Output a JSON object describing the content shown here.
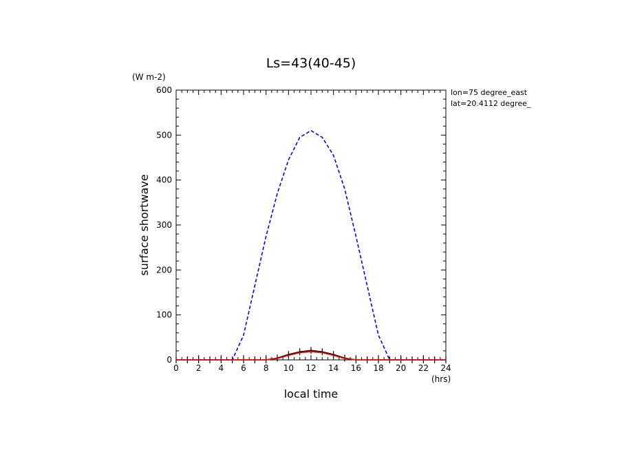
{
  "chart_data": {
    "type": "line",
    "title": "Ls=43(40-45)",
    "xlabel": "local time",
    "xunit": "(hrs)",
    "ylabel": "surface shortwave",
    "yunit": "(W m-2)",
    "xlim": [
      0,
      24
    ],
    "ylim": [
      0,
      600
    ],
    "xticks": [
      0,
      2,
      4,
      6,
      8,
      10,
      12,
      14,
      16,
      18,
      20,
      22,
      24
    ],
    "yticks": [
      0,
      100,
      200,
      300,
      400,
      500,
      600
    ],
    "annotations": [
      "lon=75 degree_east",
      "lat=20.4112 degree_"
    ],
    "x": [
      0,
      1,
      2,
      3,
      4,
      5,
      6,
      7,
      8,
      9,
      10,
      11,
      12,
      13,
      14,
      15,
      16,
      17,
      18,
      19,
      20,
      21,
      22,
      23,
      24
    ],
    "series": [
      {
        "style": "dashed",
        "color": "#0000ff",
        "values": [
          0,
          0,
          0,
          0,
          0,
          0,
          55,
          165,
          275,
          370,
          445,
          495,
          510,
          495,
          455,
          380,
          275,
          165,
          55,
          0,
          0,
          0,
          0,
          0,
          0
        ]
      },
      {
        "style": "solid",
        "color": "#ff0000",
        "values": [
          0,
          0,
          0,
          0,
          0,
          0,
          0,
          0,
          0,
          3,
          10,
          16,
          18,
          16,
          10,
          3,
          0,
          0,
          0,
          0,
          0,
          0,
          0,
          0,
          0
        ]
      },
      {
        "style": "solid-with-markers",
        "color": "#000000",
        "values": [
          0,
          0,
          0,
          0,
          0,
          0,
          0,
          0,
          0,
          4,
          12,
          18,
          21,
          18,
          12,
          4,
          0,
          0,
          0,
          0,
          0,
          0,
          0,
          0,
          0
        ]
      }
    ]
  }
}
